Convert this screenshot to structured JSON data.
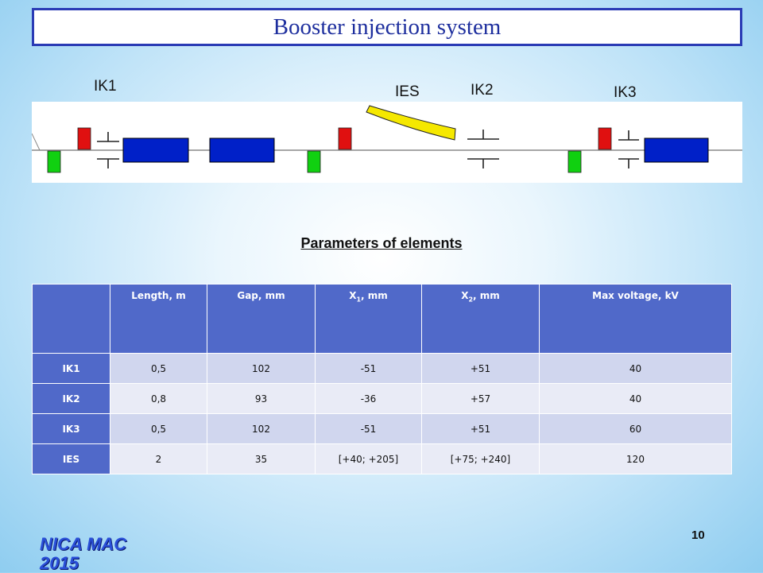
{
  "slide": {
    "title": "Booster injection system",
    "page_number": "10",
    "footer_logo": "NICA MAC\n2015"
  },
  "diagram": {
    "labels": {
      "ik1": "IK1",
      "ies": "IES",
      "ik2": "IK2",
      "ik3": "IK3"
    },
    "colors": {
      "magnet": "#0020c8",
      "red_block": "#e01010",
      "green_block": "#10d010",
      "ies_plate": "#f5e800"
    }
  },
  "parameters": {
    "title": "Parameters of elements",
    "headers": [
      "",
      "Length, m",
      "Gap, mm",
      "X",
      "X",
      "Max voltage, kV"
    ],
    "x1_sub": "1",
    "x2_sub": "2",
    "x_unit": ", mm",
    "rows": [
      [
        "IK1",
        "0,5",
        "102",
        "-51",
        "+51",
        "40"
      ],
      [
        "IK2",
        "0,8",
        "93",
        "-36",
        "+57",
        "40"
      ],
      [
        "IK3",
        "0,5",
        "102",
        "-51",
        "+51",
        "60"
      ],
      [
        "IES",
        "2",
        "35",
        "[+40; +205]",
        "[+75; +240]",
        "120"
      ]
    ]
  }
}
